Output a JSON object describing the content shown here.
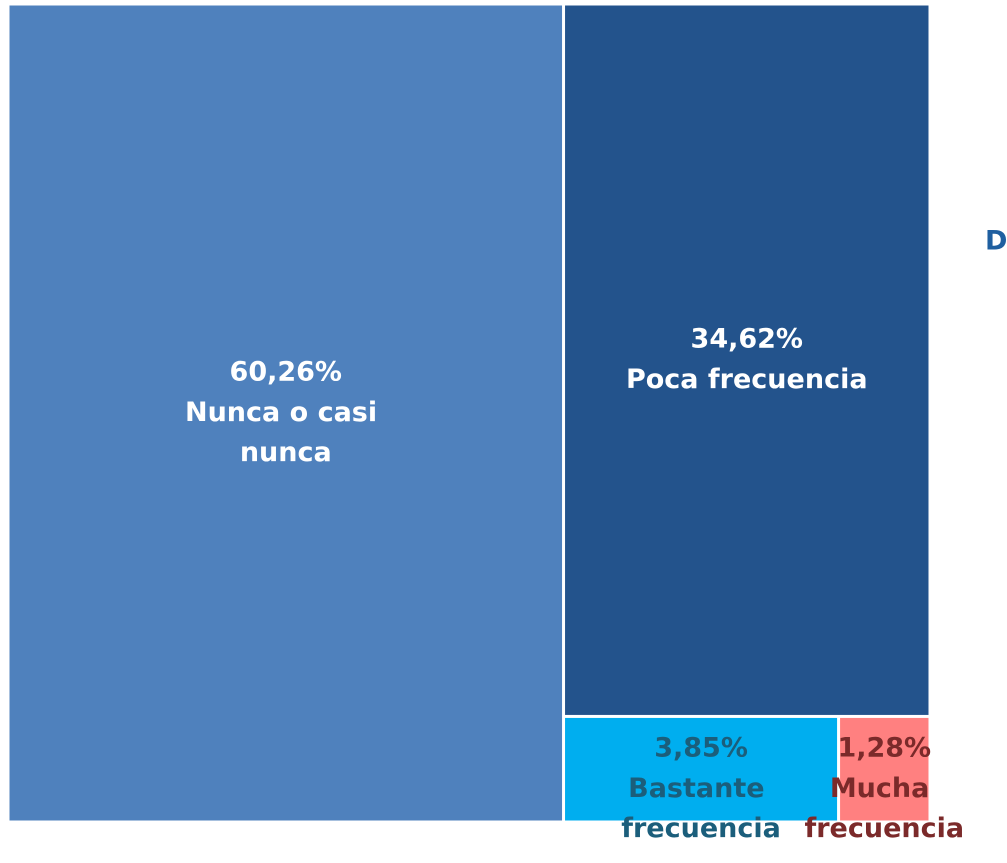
{
  "chart_data": {
    "type": "treemap",
    "categories": [
      "Nunca o casi nunca",
      "Poca frecuencia",
      "Bastante frecuencia",
      "Mucha frecuencia"
    ],
    "values": [
      60.26,
      34.62,
      3.85,
      1.28
    ],
    "value_labels": [
      "60,26%",
      "34,62%",
      "3,85%",
      "1,28%"
    ],
    "colors": [
      "#4f81bd",
      "#23538c",
      "#00aeef",
      "#ff8080"
    ],
    "label_colors": [
      "#ffffff",
      "#ffffff",
      "#1b5e7b",
      "#7b2a2a"
    ],
    "annotations": [
      "D"
    ]
  }
}
